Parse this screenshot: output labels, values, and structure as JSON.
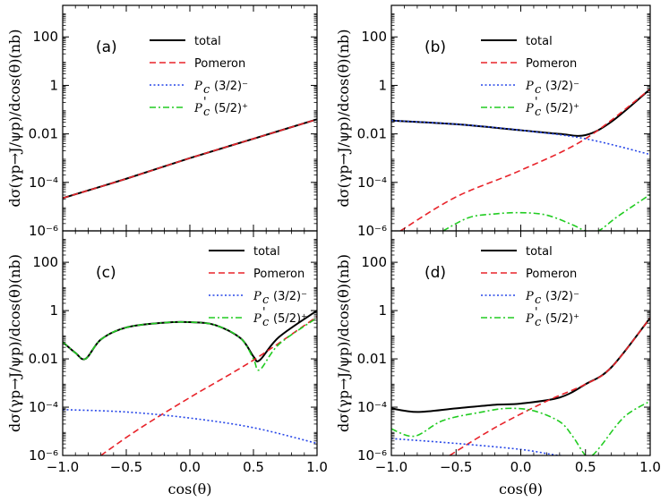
{
  "chart_data": {
    "type": "line",
    "xlabel": "cos(θ)",
    "ylabel": "dσ(γp→J/ψp)/dcos(θ)(nb)",
    "xlim": [
      -1.0,
      1.0
    ],
    "ylim": [
      1e-06,
      2000
    ],
    "yscale": "log",
    "x_ticks": [
      "−1.0",
      "−0.5",
      "0.0",
      "0.5",
      "1.0"
    ],
    "y_ticks": [
      {
        "v": 1e-06,
        "label": "10⁻⁶"
      },
      {
        "v": 0.0001,
        "label": "10⁻⁴"
      },
      {
        "v": 0.01,
        "label": "0.01"
      },
      {
        "v": 1,
        "label": "1"
      },
      {
        "v": 100,
        "label": "100"
      }
    ],
    "styles": {
      "total": {
        "color": "#000000",
        "dash": "",
        "width": 2
      },
      "pomeron": {
        "color": "#e8232a",
        "dash": "7,4",
        "width": 1.6
      },
      "pc32": {
        "color": "#2747e8",
        "dash": "2,2.5",
        "width": 1.6
      },
      "pc52": {
        "color": "#22cc22",
        "dash": "7,3,2,3",
        "width": 1.6
      }
    },
    "legend": {
      "total": "total",
      "pomeron": "Pomeron",
      "pc32_base": "P",
      "pc32_sub": "c",
      "pc32_spin": "(3/2)⁻",
      "pc52_base": "P",
      "pc52_sub": "c",
      "pc52_prime": "'",
      "pc52_spin": "(5/2)⁺"
    },
    "panels": [
      {
        "label": "(a)",
        "series": [
          {
            "key": "total",
            "x": [
              -1.0,
              -0.5,
              0.0,
              0.5,
              1.0
            ],
            "logy": [
              -4.65,
              -3.85,
              -3.0,
              -2.2,
              -1.4
            ]
          },
          {
            "key": "pomeron",
            "x": [
              -1.0,
              -0.5,
              0.0,
              0.5,
              1.0
            ],
            "logy": [
              -4.65,
              -3.85,
              -3.0,
              -2.2,
              -1.4
            ]
          }
        ]
      },
      {
        "label": "(b)",
        "series": [
          {
            "key": "total",
            "x": [
              -1.0,
              -0.5,
              0.0,
              0.3,
              0.5,
              0.7,
              1.0
            ],
            "logy": [
              -1.45,
              -1.6,
              -1.85,
              -2.0,
              -2.05,
              -1.5,
              -0.15
            ]
          },
          {
            "key": "pomeron",
            "x": [
              -0.93,
              -0.5,
              0.0,
              0.5,
              1.0
            ],
            "logy": [
              -6.0,
              -4.6,
              -3.5,
              -2.2,
              -0.15
            ]
          },
          {
            "key": "pc32",
            "x": [
              -1.0,
              -0.5,
              0.0,
              0.5,
              1.0
            ],
            "logy": [
              -1.45,
              -1.6,
              -1.85,
              -2.2,
              -2.85
            ]
          },
          {
            "key": "pc52",
            "x": [
              -0.6,
              -0.4,
              -0.2,
              0.0,
              0.2,
              0.4,
              0.5,
              0.6,
              0.75,
              1.0
            ],
            "logy": [
              -6.0,
              -5.45,
              -5.3,
              -5.25,
              -5.35,
              -5.75,
              -6.0,
              -6.0,
              -5.4,
              -4.5
            ]
          }
        ]
      },
      {
        "label": "(c)",
        "series": [
          {
            "key": "total",
            "x": [
              -1.0,
              -0.9,
              -0.82,
              -0.7,
              -0.5,
              -0.2,
              0.0,
              0.2,
              0.4,
              0.5,
              0.55,
              0.7,
              1.0
            ],
            "logy": [
              -1.3,
              -1.75,
              -2.0,
              -1.2,
              -0.7,
              -0.5,
              -0.48,
              -0.6,
              -1.15,
              -1.9,
              -2.05,
              -1.1,
              0.0
            ]
          },
          {
            "key": "pomeron",
            "x": [
              -0.7,
              -0.4,
              0.0,
              0.5,
              1.0
            ],
            "logy": [
              -6.0,
              -4.9,
              -3.6,
              -2.05,
              -0.25
            ]
          },
          {
            "key": "pc32",
            "x": [
              -1.0,
              -0.5,
              0.0,
              0.5,
              1.0
            ],
            "logy": [
              -4.1,
              -4.2,
              -4.45,
              -4.85,
              -5.5
            ]
          },
          {
            "key": "pc52",
            "x": [
              -1.0,
              -0.9,
              -0.82,
              -0.7,
              -0.5,
              -0.2,
              0.0,
              0.2,
              0.4,
              0.5,
              0.55,
              0.7,
              1.0
            ],
            "logy": [
              -1.3,
              -1.75,
              -2.0,
              -1.2,
              -0.7,
              -0.5,
              -0.48,
              -0.6,
              -1.15,
              -2.0,
              -2.45,
              -1.4,
              -0.3
            ]
          }
        ]
      },
      {
        "label": "(d)",
        "series": [
          {
            "key": "total",
            "x": [
              -1.0,
              -0.8,
              -0.5,
              -0.2,
              0.0,
              0.3,
              0.5,
              0.7,
              1.0
            ],
            "logy": [
              -4.05,
              -4.2,
              -4.05,
              -3.9,
              -3.85,
              -3.6,
              -3.05,
              -2.35,
              -0.3
            ]
          },
          {
            "key": "pomeron",
            "x": [
              -0.55,
              -0.2,
              0.2,
              0.5,
              0.7,
              1.0
            ],
            "logy": [
              -6.0,
              -4.85,
              -3.75,
              -3.05,
              -2.35,
              -0.3
            ]
          },
          {
            "key": "pc32",
            "x": [
              -1.0,
              -0.5,
              0.0,
              0.3,
              0.5
            ],
            "logy": [
              -5.3,
              -5.5,
              -5.75,
              -6.0,
              -6.0
            ]
          },
          {
            "key": "pc52",
            "x": [
              -1.0,
              -0.82,
              -0.6,
              -0.3,
              -0.1,
              0.1,
              0.3,
              0.4,
              0.5,
              0.55,
              0.62,
              0.8,
              1.0
            ],
            "logy": [
              -4.9,
              -5.2,
              -4.55,
              -4.2,
              -4.05,
              -4.15,
              -4.6,
              -5.2,
              -6.0,
              -6.0,
              -5.6,
              -4.4,
              -3.75
            ]
          }
        ]
      }
    ]
  }
}
